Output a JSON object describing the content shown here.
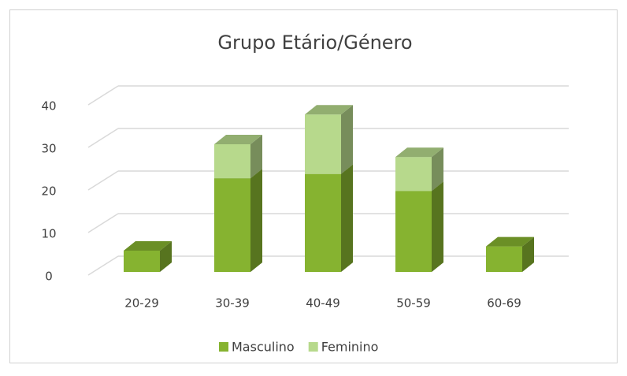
{
  "chart_data": {
    "type": "bar3d_stacked",
    "title": "Grupo Etário/Género",
    "categories": [
      "20-29",
      "30-39",
      "40-49",
      "50-59",
      "60-69"
    ],
    "series": [
      {
        "name": "Masculino",
        "color": "#86b330",
        "values": [
          5,
          22,
          23,
          19,
          6
        ]
      },
      {
        "name": "Feminino",
        "color": "#b7d98c",
        "values": [
          0,
          8,
          14,
          8,
          0
        ]
      }
    ],
    "ylim": [
      0,
      40
    ],
    "yticks": [
      0,
      10,
      20,
      30,
      40
    ],
    "grid": true,
    "legend": "bottom"
  }
}
